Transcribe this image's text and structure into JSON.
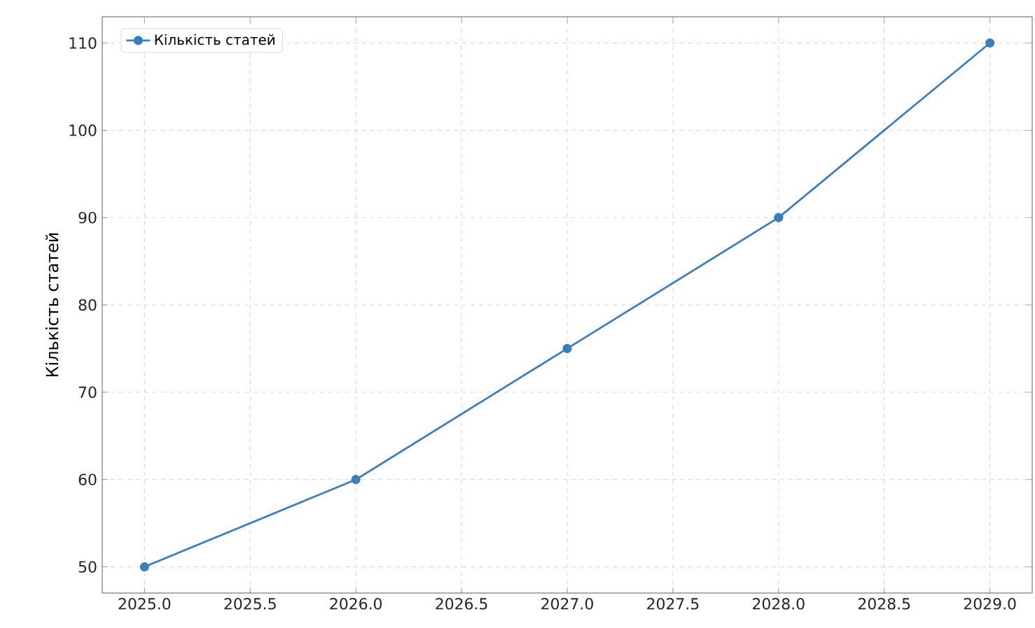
{
  "chart_data": {
    "type": "line",
    "ylabel": "Кількість статей",
    "x": [
      2025,
      2026,
      2027,
      2028,
      2029
    ],
    "series": [
      {
        "name": "Кількість статей",
        "color": "#3a7ebf",
        "values": [
          50,
          60,
          75,
          90,
          110
        ]
      }
    ],
    "xlim": [
      2024.8,
      2029.2
    ],
    "ylim": [
      47,
      113
    ],
    "xticks": [
      {
        "value": 2025,
        "label": "2025.0"
      },
      {
        "value": 2025.5,
        "label": "2025.5"
      },
      {
        "value": 2026,
        "label": "2026.0"
      },
      {
        "value": 2026.5,
        "label": "2026.5"
      },
      {
        "value": 2027,
        "label": "2027.0"
      },
      {
        "value": 2027.5,
        "label": "2027.5"
      },
      {
        "value": 2028,
        "label": "2028.0"
      },
      {
        "value": 2028.5,
        "label": "2028.5"
      },
      {
        "value": 2029,
        "label": "2029.0"
      }
    ],
    "yticks": [
      50,
      60,
      70,
      80,
      90,
      100,
      110
    ],
    "grid": true,
    "legend": "top left",
    "marker": "circle",
    "line_style": "solid"
  }
}
